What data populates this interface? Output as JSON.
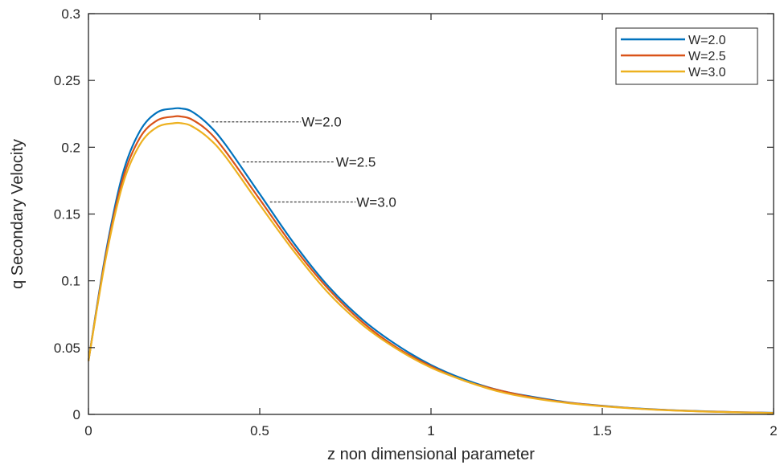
{
  "chart_data": {
    "type": "line",
    "title": "",
    "xlabel": "z non dimensional parameter",
    "ylabel": "q Secondary Velocity",
    "xlim": [
      0,
      2
    ],
    "ylim": [
      0,
      0.3
    ],
    "xticks": [
      0,
      0.5,
      1,
      1.5,
      2
    ],
    "xtick_labels": [
      "0",
      "0.5",
      "1",
      "1.5",
      "2"
    ],
    "yticks": [
      0,
      0.05,
      0.1,
      0.15,
      0.2,
      0.25,
      0.3
    ],
    "ytick_labels": [
      "0",
      "0.05",
      "0.1",
      "0.15",
      "0.2",
      "0.25",
      "0.3"
    ],
    "grid": false,
    "legend_position": "top-right",
    "x": [
      0,
      0.05,
      0.1,
      0.15,
      0.2,
      0.25,
      0.27,
      0.3,
      0.35,
      0.4,
      0.5,
      0.6,
      0.7,
      0.8,
      0.9,
      1.0,
      1.1,
      1.2,
      1.3,
      1.4,
      1.5,
      1.6,
      1.7,
      1.8,
      1.9,
      2.0
    ],
    "series": [
      {
        "name": "W=2.0",
        "color": "#0072BD",
        "values": [
          0.04,
          0.12,
          0.18,
          0.212,
          0.226,
          0.229,
          0.229,
          0.227,
          0.217,
          0.202,
          0.165,
          0.128,
          0.096,
          0.071,
          0.052,
          0.037,
          0.026,
          0.018,
          0.013,
          0.009,
          0.0065,
          0.0045,
          0.0032,
          0.0023,
          0.0016,
          0.0012
        ]
      },
      {
        "name": "W=2.5",
        "color": "#D95319",
        "values": [
          0.04,
          0.118,
          0.176,
          0.207,
          0.22,
          0.223,
          0.223,
          0.221,
          0.212,
          0.197,
          0.161,
          0.125,
          0.094,
          0.069,
          0.05,
          0.036,
          0.025,
          0.018,
          0.0125,
          0.0088,
          0.0063,
          0.0044,
          0.0031,
          0.0022,
          0.0016,
          0.0011
        ]
      },
      {
        "name": "W=3.0",
        "color": "#EDB120",
        "values": [
          0.04,
          0.116,
          0.172,
          0.202,
          0.215,
          0.218,
          0.218,
          0.216,
          0.207,
          0.193,
          0.157,
          0.122,
          0.091,
          0.067,
          0.049,
          0.035,
          0.025,
          0.017,
          0.012,
          0.0085,
          0.0061,
          0.0043,
          0.003,
          0.0021,
          0.0015,
          0.001
        ]
      }
    ],
    "annotations": [
      {
        "text": "W=2.0",
        "series": 0,
        "at_x": 0.36,
        "y": 0.219,
        "label_x": 0.62
      },
      {
        "text": "W=2.5",
        "series": 1,
        "at_x": 0.45,
        "y": 0.189,
        "label_x": 0.72
      },
      {
        "text": "W=3.0",
        "series": 2,
        "at_x": 0.53,
        "y": 0.159,
        "label_x": 0.78
      }
    ]
  }
}
